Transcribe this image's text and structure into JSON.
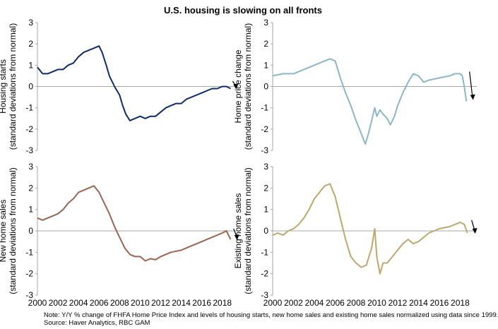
{
  "title": "U.S. housing is slowing on all fronts",
  "note": "Note: Y/Y % change of FHFA Home Price Index and levels of housing starts, new home sales and existing home sales normalized using data since 1999.",
  "source": "Source: Haver Analytics, RBC GAM",
  "chart_data": [
    {
      "type": "line",
      "id": "housing-starts",
      "ylabel": [
        "Housing starts",
        "(standard deviations from normal)"
      ],
      "ylim": [
        -3,
        3
      ],
      "yticks": [
        "3",
        "2",
        "1",
        "0",
        "-1",
        "-2",
        "-3"
      ],
      "xlim": [
        2000,
        2019.6
      ],
      "xticks": [],
      "color": "#0f2b6e",
      "series": [
        {
          "x": [
            2000.0,
            2000.5,
            2001.0,
            2001.5,
            2002.0,
            2002.5,
            2003.0,
            2003.5,
            2004.0,
            2004.5,
            2005.0,
            2005.5,
            2006.0,
            2006.3,
            2006.7,
            2007.0,
            2007.5,
            2008.0,
            2008.3,
            2008.6,
            2009.0,
            2009.5,
            2010.0,
            2010.5,
            2011.0,
            2011.5,
            2012.0,
            2012.5,
            2013.0,
            2013.5,
            2014.0,
            2014.5,
            2015.0,
            2015.5,
            2016.0,
            2016.5,
            2017.0,
            2017.5,
            2018.0,
            2018.4,
            2018.8
          ],
          "y": [
            0.9,
            0.6,
            0.6,
            0.7,
            0.8,
            0.8,
            1.0,
            1.1,
            1.4,
            1.6,
            1.7,
            1.8,
            1.9,
            1.6,
            1.0,
            0.5,
            0.0,
            -0.4,
            -0.9,
            -1.3,
            -1.6,
            -1.5,
            -1.4,
            -1.5,
            -1.4,
            -1.4,
            -1.2,
            -1.0,
            -0.9,
            -0.8,
            -0.8,
            -0.6,
            -0.5,
            -0.4,
            -0.3,
            -0.2,
            -0.1,
            -0.1,
            0.0,
            0.0,
            -0.1
          ]
        }
      ],
      "arrow": {
        "x": 2019.0,
        "y1": 0.25,
        "y2": -0.1
      }
    },
    {
      "type": "line",
      "id": "home-price-change",
      "ylabel": [
        "Home price change",
        "(standard deviations from normal)"
      ],
      "ylim": [
        -3,
        3
      ],
      "yticks": [
        "3",
        "2",
        "1",
        "0",
        "-1",
        "-2",
        "-3"
      ],
      "xlim": [
        2000,
        2019.6
      ],
      "xticks": [],
      "color": "#8ab6c8",
      "series": [
        {
          "x": [
            2000.0,
            2001.0,
            2002.0,
            2003.0,
            2004.0,
            2004.5,
            2005.0,
            2005.5,
            2006.0,
            2006.5,
            2007.0,
            2007.5,
            2008.0,
            2008.5,
            2008.9,
            2009.2,
            2009.5,
            2009.8,
            2010.0,
            2010.3,
            2010.6,
            2011.0,
            2011.3,
            2011.7,
            2012.0,
            2012.5,
            2013.0,
            2013.5,
            2014.0,
            2014.5,
            2015.0,
            2016.0,
            2017.0,
            2017.5,
            2018.0,
            2018.2,
            2018.4,
            2018.6
          ],
          "y": [
            0.5,
            0.6,
            0.6,
            0.8,
            1.0,
            1.1,
            1.2,
            1.3,
            1.2,
            0.4,
            -0.3,
            -0.9,
            -1.6,
            -2.2,
            -2.7,
            -2.2,
            -1.6,
            -1.0,
            -1.4,
            -1.1,
            -1.3,
            -1.5,
            -1.8,
            -1.4,
            -0.9,
            -0.3,
            0.2,
            0.6,
            0.5,
            0.2,
            0.3,
            0.4,
            0.5,
            0.6,
            0.6,
            0.5,
            0.0,
            -0.7
          ]
        }
      ],
      "arrow": {
        "x": 2018.9,
        "y1": 0.7,
        "y2": -0.6
      }
    },
    {
      "type": "line",
      "id": "new-home-sales",
      "ylabel": [
        "New home sales",
        "(standard deviations from normal)"
      ],
      "ylim": [
        -3,
        3
      ],
      "yticks": [
        "3",
        "2",
        "1",
        "0",
        "-1",
        "-2",
        "-3"
      ],
      "xlim": [
        2000,
        2019.6
      ],
      "xticks": [
        "2000",
        "2002",
        "2004",
        "2006",
        "2008",
        "2010",
        "2012",
        "2014",
        "2016",
        "2018"
      ],
      "color": "#9e6350",
      "series": [
        {
          "x": [
            2000.0,
            2000.5,
            2001.0,
            2001.5,
            2002.0,
            2002.5,
            2003.0,
            2003.5,
            2004.0,
            2004.5,
            2005.0,
            2005.5,
            2006.0,
            2006.5,
            2007.0,
            2007.5,
            2008.0,
            2008.5,
            2009.0,
            2009.5,
            2010.0,
            2010.5,
            2011.0,
            2011.5,
            2012.0,
            2013.0,
            2014.0,
            2015.0,
            2016.0,
            2016.5,
            2017.0,
            2017.5,
            2018.0,
            2018.4,
            2018.8
          ],
          "y": [
            0.6,
            0.5,
            0.6,
            0.7,
            0.8,
            1.0,
            1.3,
            1.5,
            1.8,
            1.9,
            2.0,
            2.1,
            1.8,
            1.3,
            0.8,
            0.2,
            -0.3,
            -0.8,
            -1.1,
            -1.2,
            -1.2,
            -1.4,
            -1.3,
            -1.35,
            -1.2,
            -1.0,
            -0.9,
            -0.7,
            -0.5,
            -0.4,
            -0.3,
            -0.2,
            -0.1,
            0.0,
            -0.4
          ]
        }
      ],
      "arrow": {
        "x": 2019.1,
        "y1": 0.1,
        "y2": -0.4
      }
    },
    {
      "type": "line",
      "id": "existing-home-sales",
      "ylabel": [
        "Existing home sales",
        "(standard deviations from normal)"
      ],
      "ylim": [
        -3,
        3
      ],
      "yticks": [
        "3",
        "2",
        "1",
        "0",
        "-1",
        "-2",
        "-3"
      ],
      "xlim": [
        2000,
        2019.6
      ],
      "xticks": [
        "2000",
        "2002",
        "2004",
        "2006",
        "2008",
        "2010",
        "2012",
        "2014",
        "2016",
        "2018"
      ],
      "color": "#bea76a",
      "series": [
        {
          "x": [
            2000.0,
            2000.5,
            2001.0,
            2001.5,
            2002.0,
            2002.5,
            2003.0,
            2003.5,
            2004.0,
            2004.5,
            2005.0,
            2005.5,
            2006.0,
            2006.5,
            2007.0,
            2007.5,
            2008.0,
            2008.5,
            2009.0,
            2009.5,
            2009.8,
            2010.0,
            2010.3,
            2010.6,
            2011.0,
            2011.5,
            2012.0,
            2012.5,
            2013.0,
            2013.5,
            2014.0,
            2014.5,
            2015.0,
            2016.0,
            2017.0,
            2017.5,
            2018.0,
            2018.4,
            2018.7
          ],
          "y": [
            -0.2,
            -0.1,
            -0.2,
            0.0,
            0.1,
            0.3,
            0.6,
            1.0,
            1.5,
            1.8,
            2.1,
            2.2,
            1.6,
            0.6,
            -0.4,
            -1.2,
            -1.5,
            -1.7,
            -1.6,
            -0.8,
            0.1,
            -1.2,
            -2.0,
            -1.5,
            -1.5,
            -1.2,
            -0.9,
            -0.6,
            -0.4,
            -0.6,
            -0.5,
            -0.3,
            -0.1,
            0.1,
            0.2,
            0.3,
            0.4,
            0.3,
            -0.1
          ]
        }
      ],
      "arrow": {
        "x": 2019.1,
        "y1": 0.5,
        "y2": -0.1
      }
    }
  ]
}
